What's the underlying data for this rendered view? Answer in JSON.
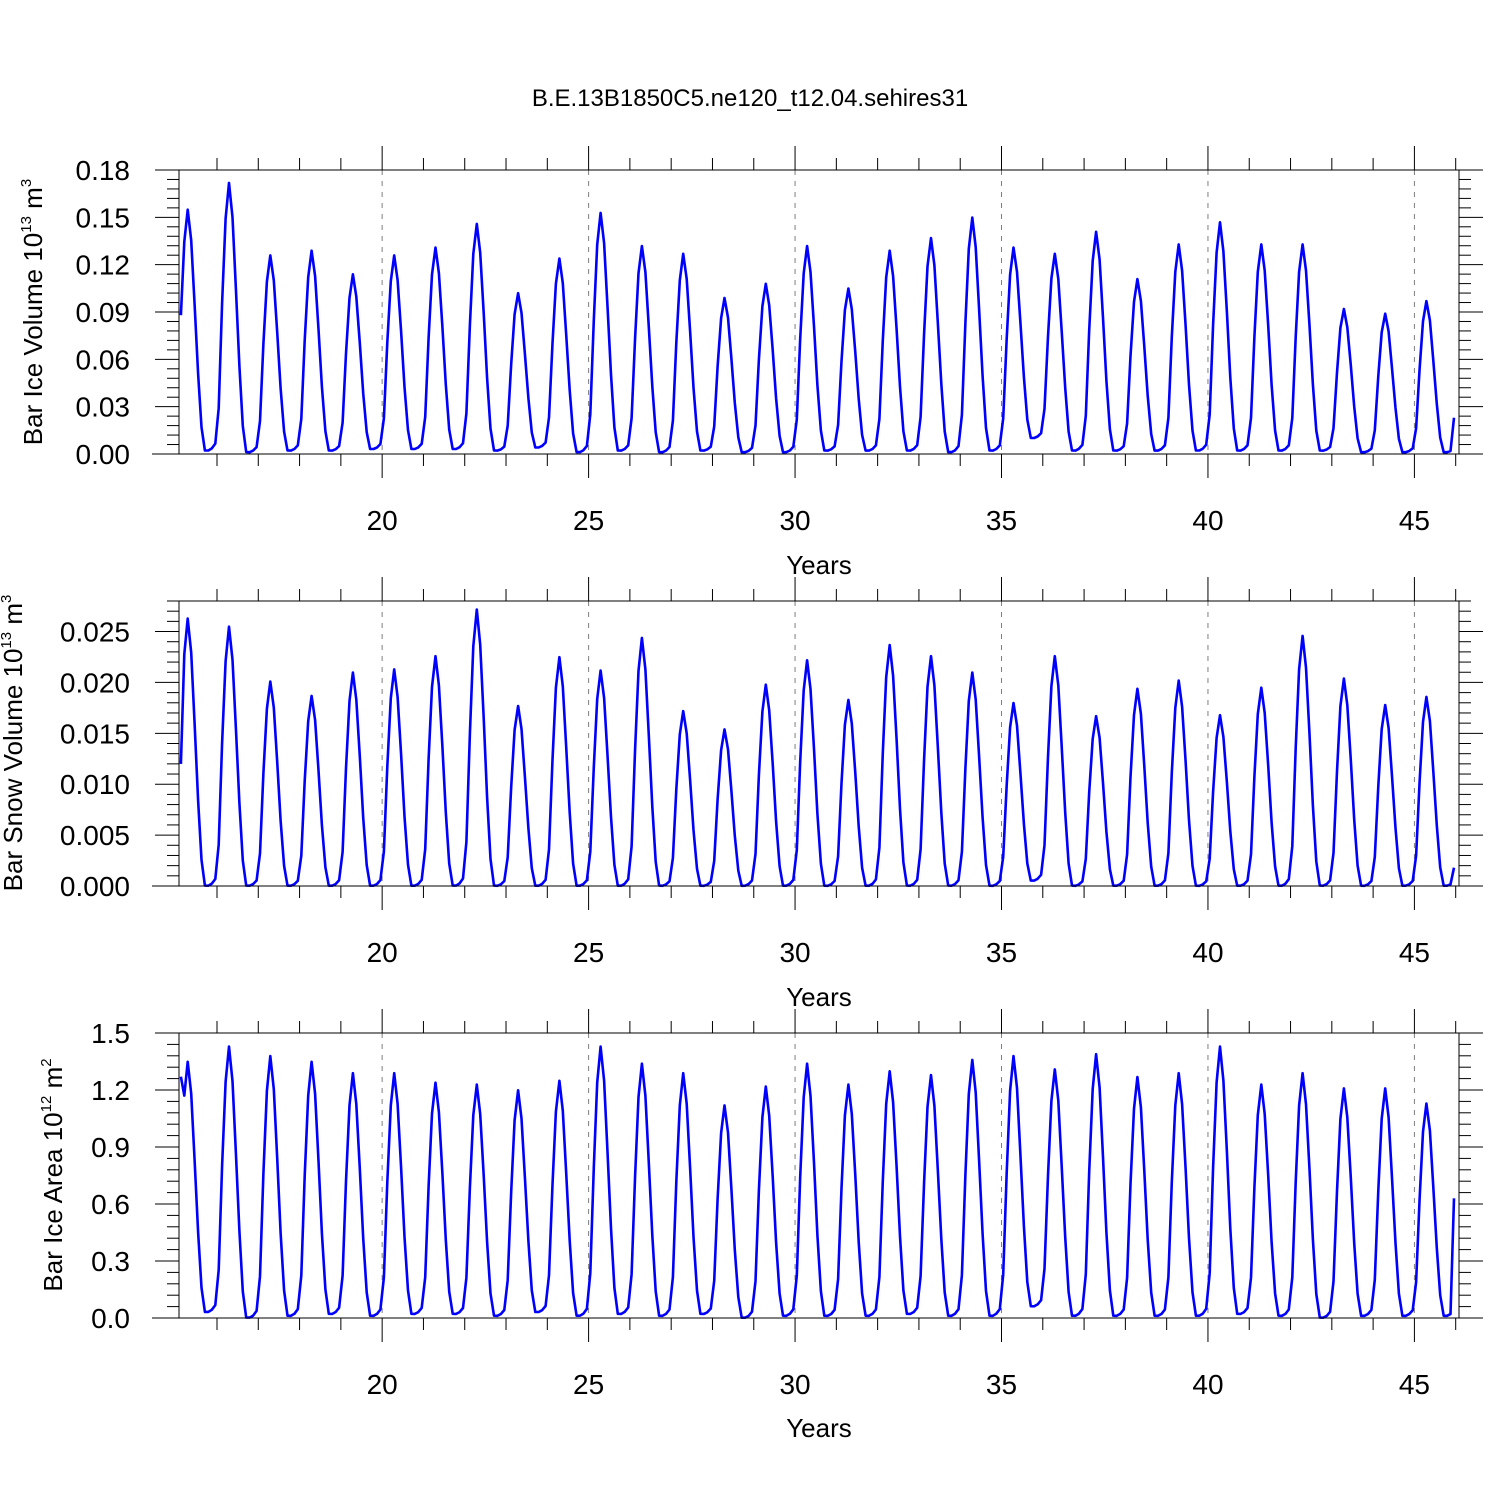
{
  "title": "B.E.13B1850C5.ne120_t12.04.sehires31",
  "colors": {
    "series": "#0000ff",
    "axes": "#000000",
    "grid": "#7f7f7f",
    "background": "#ffffff"
  },
  "chart_data": [
    {
      "type": "line",
      "ylabel_main": "Bar Ice Volume 10",
      "ylabel_exp": "13",
      "ylabel_unit": " m",
      "ylabel_unit_exp": "3",
      "xlabel": "Years",
      "xlim": [
        15.08,
        46.08
      ],
      "ylim": [
        0,
        0.18
      ],
      "yticks": [
        "0.00",
        "0.03",
        "0.06",
        "0.09",
        "0.12",
        "0.15",
        "0.18"
      ],
      "xticks": [
        "20",
        "25",
        "30",
        "35",
        "40",
        "45"
      ],
      "grid": "vertical dashed at major x ticks",
      "annual_peaks": [
        0.155,
        0.172,
        0.126,
        0.129,
        0.114,
        0.126,
        0.131,
        0.146,
        0.102,
        0.124,
        0.153,
        0.132,
        0.127,
        0.099,
        0.108,
        0.132,
        0.105,
        0.129,
        0.137,
        0.15,
        0.131,
        0.127,
        0.141,
        0.111,
        0.133,
        0.147,
        0.133,
        0.133,
        0.092,
        0.089,
        0.097
      ],
      "annual_minima": [
        0.002,
        0.002,
        0.001,
        0.002,
        0.002,
        0.003,
        0.003,
        0.003,
        0.002,
        0.004,
        0.001,
        0.002,
        0.001,
        0.002,
        0.001,
        0.001,
        0.002,
        0.002,
        0.002,
        0.001,
        0.002,
        0.01,
        0.002,
        0.002,
        0.002,
        0.002,
        0.002,
        0.002,
        0.002,
        0.001,
        0.001
      ],
      "start_value": 0.088,
      "end_value": 0.023
    },
    {
      "type": "line",
      "ylabel_main": "Bar Snow Volume 10",
      "ylabel_exp": "13",
      "ylabel_unit": " m",
      "ylabel_unit_exp": "3",
      "xlabel": "Years",
      "xlim": [
        15.08,
        46.08
      ],
      "ylim": [
        0,
        0.028
      ],
      "yticks": [
        "0.000",
        "0.005",
        "0.010",
        "0.015",
        "0.020",
        "0.025"
      ],
      "xticks": [
        "20",
        "25",
        "30",
        "35",
        "40",
        "45"
      ],
      "grid": "vertical dashed at major x ticks",
      "annual_peaks": [
        0.0263,
        0.0255,
        0.0201,
        0.0187,
        0.021,
        0.0213,
        0.0226,
        0.0272,
        0.0177,
        0.0225,
        0.0212,
        0.0244,
        0.0172,
        0.0154,
        0.0198,
        0.0222,
        0.0183,
        0.0237,
        0.0226,
        0.021,
        0.018,
        0.0226,
        0.0167,
        0.0194,
        0.0202,
        0.0168,
        0.0195,
        0.0246,
        0.0204,
        0.0178,
        0.0186
      ],
      "annual_minima": [
        0,
        0,
        0,
        0,
        0,
        0,
        0,
        0,
        0,
        0,
        0,
        0,
        0,
        0,
        0,
        0,
        0,
        0,
        0,
        0,
        0,
        0.0005,
        0,
        0,
        0,
        0,
        0,
        0,
        0,
        0,
        0
      ],
      "start_value": 0.012,
      "end_value": 0.0018
    },
    {
      "type": "line",
      "ylabel_main": "Bar Ice Area 10",
      "ylabel_exp": "12",
      "ylabel_unit": " m",
      "ylabel_unit_exp": "2",
      "xlabel": "Years",
      "xlim": [
        15.08,
        46.08
      ],
      "ylim": [
        0,
        1.5
      ],
      "yticks": [
        "0.0",
        "0.3",
        "0.6",
        "0.9",
        "1.2",
        "1.5"
      ],
      "xticks": [
        "20",
        "25",
        "30",
        "35",
        "40",
        "45"
      ],
      "grid": "vertical dashed at major x ticks",
      "annual_peaks": [
        1.35,
        1.43,
        1.38,
        1.35,
        1.29,
        1.29,
        1.24,
        1.23,
        1.2,
        1.25,
        1.43,
        1.34,
        1.29,
        1.12,
        1.22,
        1.34,
        1.23,
        1.3,
        1.28,
        1.36,
        1.38,
        1.31,
        1.39,
        1.27,
        1.29,
        1.43,
        1.23,
        1.29,
        1.21,
        1.21,
        1.13
      ],
      "annual_minima": [
        0.01,
        0.03,
        0.0,
        0.01,
        0.02,
        0.01,
        0.02,
        0.02,
        0.01,
        0.03,
        0.01,
        0.02,
        0.01,
        0.02,
        0.0,
        0.01,
        0.01,
        0.01,
        0.02,
        0.01,
        0.01,
        0.06,
        0.01,
        0.01,
        0.01,
        0.01,
        0.02,
        0.01,
        0.0,
        0.01,
        0.01
      ],
      "start_value": 1.27,
      "end_value": 0.63
    }
  ]
}
